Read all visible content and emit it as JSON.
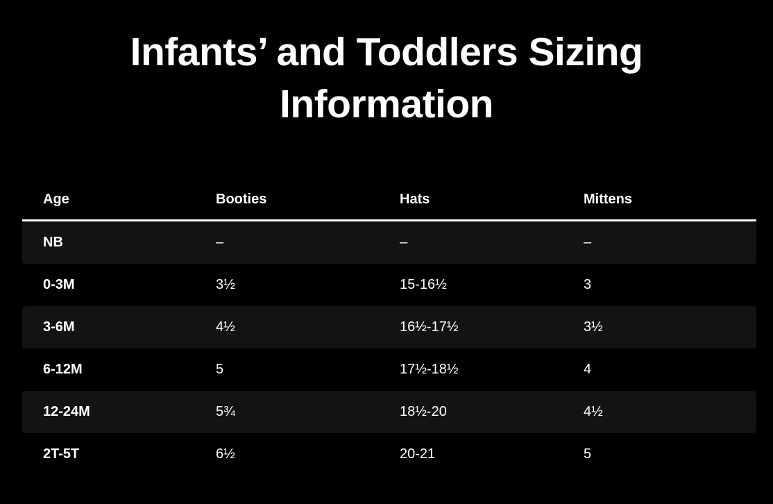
{
  "title": "Infants’ and Toddlers Sizing Information",
  "colors": {
    "background": "#000000",
    "stripe_row": "#131313",
    "text": "#ffffff",
    "divider": "#ffffff"
  },
  "table": {
    "columns": [
      {
        "label": "Age"
      },
      {
        "label": "Booties"
      },
      {
        "label": "Hats"
      },
      {
        "label": "Mittens"
      }
    ],
    "rows": [
      {
        "age": "NB",
        "booties": "–",
        "hats": "–",
        "mittens": "–"
      },
      {
        "age": "0-3M",
        "booties": "3½",
        "hats": "15-16½",
        "mittens": "3"
      },
      {
        "age": "3-6M",
        "booties": "4½",
        "hats": "16½-17½",
        "mittens": "3½"
      },
      {
        "age": "6-12M",
        "booties": "5",
        "hats": "17½-18½",
        "mittens": "4"
      },
      {
        "age": "12-24M",
        "booties": "5¾",
        "hats": "18½-20",
        "mittens": "4½"
      },
      {
        "age": "2T-5T",
        "booties": "6½",
        "hats": "20-21",
        "mittens": "5"
      }
    ]
  }
}
